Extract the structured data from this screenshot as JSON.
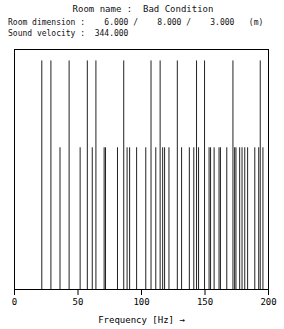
{
  "chart_data": {
    "type": "stem",
    "title": "Room name :  Bad Condition",
    "annotations": [
      "Room dimension :    6.000 /    8.000 /    3.000   (m)",
      "Sound velocity :  344.000"
    ],
    "x_label": "Frequency [Hz]",
    "x": [
      21.5,
      28.667,
      35.833,
      43,
      51.68,
      57.333,
      61.232,
      64.101,
      70.583,
      71.667,
      81.082,
      86,
      88.647,
      90.652,
      96.151,
      103.359,
      107.5,
      111.257,
      114.667,
      116.665,
      118.196,
      121.622,
      128.201,
      131.563,
      137.667,
      141.167,
      143.333,
      144.937,
      149.644,
      153.206,
      154.375,
      157.177,
      161.051,
      162.163,
      167.154,
      172,
      173.339,
      174.373,
      177.294,
      179.167,
      181.304,
      183.556,
      189.206,
      192.302,
      193.5,
      195.612
    ],
    "values": [
      1.0,
      1.0,
      0.62,
      1.0,
      0.62,
      1.0,
      0.62,
      1.0,
      0.62,
      0.62,
      0.62,
      1.0,
      0.62,
      0.62,
      0.62,
      0.62,
      1.0,
      0.62,
      1.0,
      0.62,
      0.62,
      0.62,
      1.0,
      0.62,
      0.62,
      0.62,
      1.0,
      0.62,
      1.0,
      0.62,
      0.62,
      0.62,
      0.62,
      0.62,
      0.62,
      1.0,
      0.62,
      0.62,
      0.62,
      0.62,
      0.62,
      0.62,
      0.62,
      0.62,
      1.0,
      0.62
    ],
    "color": "#222222",
    "xlim": [
      0,
      200
    ],
    "xticks": [
      0,
      50,
      100,
      150,
      200
    ],
    "ylim": [
      0,
      1.05
    ],
    "yticks": [],
    "tick_labels": "x",
    "grid": false
  }
}
